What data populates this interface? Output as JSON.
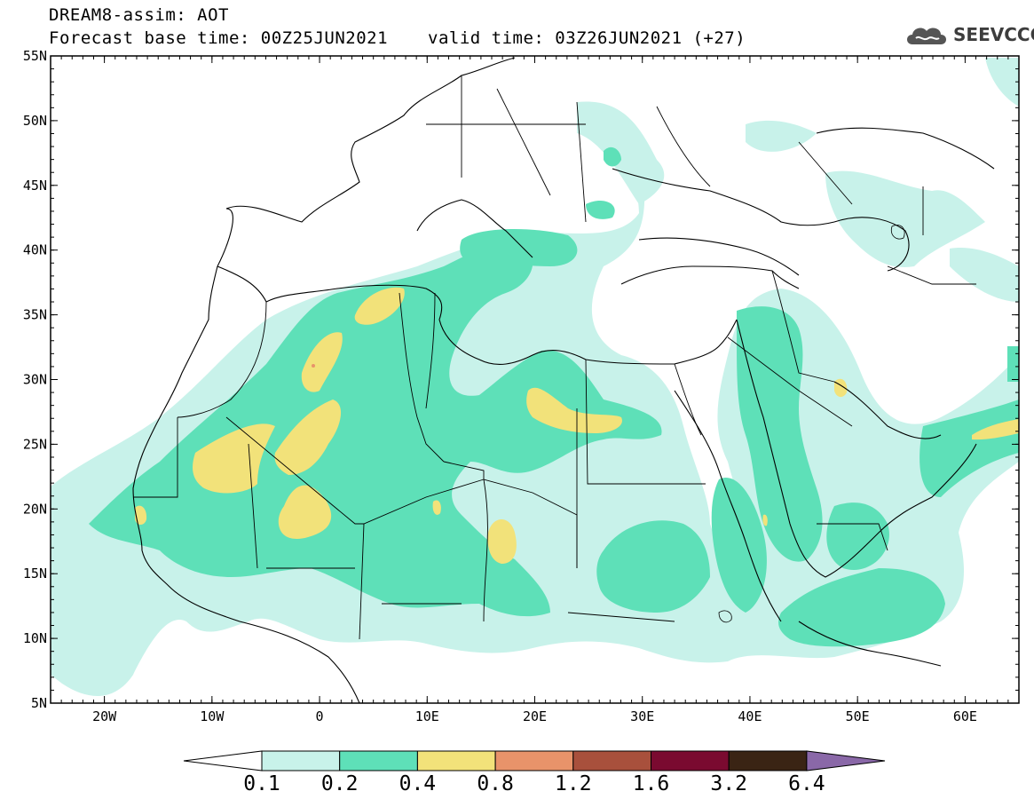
{
  "header": {
    "title_line1": "DREAM8-assim: AOT",
    "title_line2": "Forecast base time: 00Z25JUN2021",
    "valid_time": "valid time: 03Z26JUN2021 (+27)"
  },
  "logo": {
    "text": "SEEVCCC",
    "icon": "cloud-logo-icon"
  },
  "map": {
    "lon_range": [
      -25,
      65
    ],
    "lat_range": [
      5,
      55
    ],
    "lat_labels": [
      "55N",
      "50N",
      "45N",
      "40N",
      "35N",
      "30N",
      "25N",
      "20N",
      "15N",
      "10N",
      "5N"
    ],
    "lon_labels": [
      "20W",
      "10W",
      "0",
      "10E",
      "20E",
      "30E",
      "40E",
      "50E",
      "60E"
    ]
  },
  "colorbar": {
    "levels": [
      "0.1",
      "0.2",
      "0.4",
      "0.8",
      "1.2",
      "1.6",
      "3.2",
      "6.4"
    ],
    "colors": [
      "#ffffff",
      "#c8f2ea",
      "#5ee0b8",
      "#f2e27a",
      "#e8936a",
      "#a8503c",
      "#7a0a30",
      "#3a2414",
      "#8a68a8"
    ]
  },
  "colors": {
    "level1": "#c8f2ea",
    "level2": "#5ee0b8",
    "level3": "#f2e27a",
    "level4": "#e8936a",
    "border": "#000000"
  }
}
